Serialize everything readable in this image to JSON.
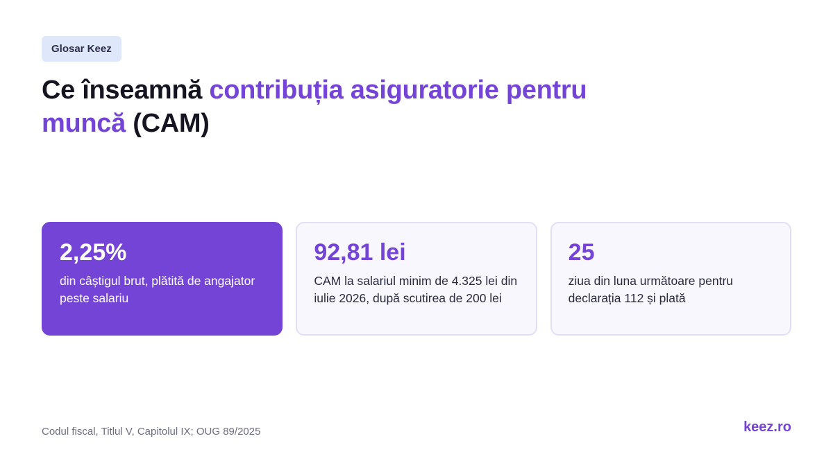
{
  "badge": {
    "label": "Glosar Keez"
  },
  "title": {
    "part1": "Ce înseamnă ",
    "accent1": "contribuția asiguratorie pentru",
    "accent2": "muncă",
    "part2": " (CAM)"
  },
  "cards": [
    {
      "value": "2,25%",
      "description": "din câștigul brut, plătită de angajator peste salariu"
    },
    {
      "value": "92,81 lei",
      "description": "CAM la salariul minim de 4.325 lei din iulie 2026, după scutirea de 200 lei"
    },
    {
      "value": "25",
      "description": "ziua din luna următoare pentru declarația 112 și plată"
    }
  ],
  "footer": {
    "source": "Codul fiscal, Titlul V, Capitolul IX; OUG 89/2025",
    "brand": "keez.ro"
  },
  "colors": {
    "accent": "#7444d6",
    "badge_bg": "#dfe8fb",
    "card_bg": "#f8f7fe",
    "card_border": "#e2def6",
    "title_text": "#151521"
  }
}
